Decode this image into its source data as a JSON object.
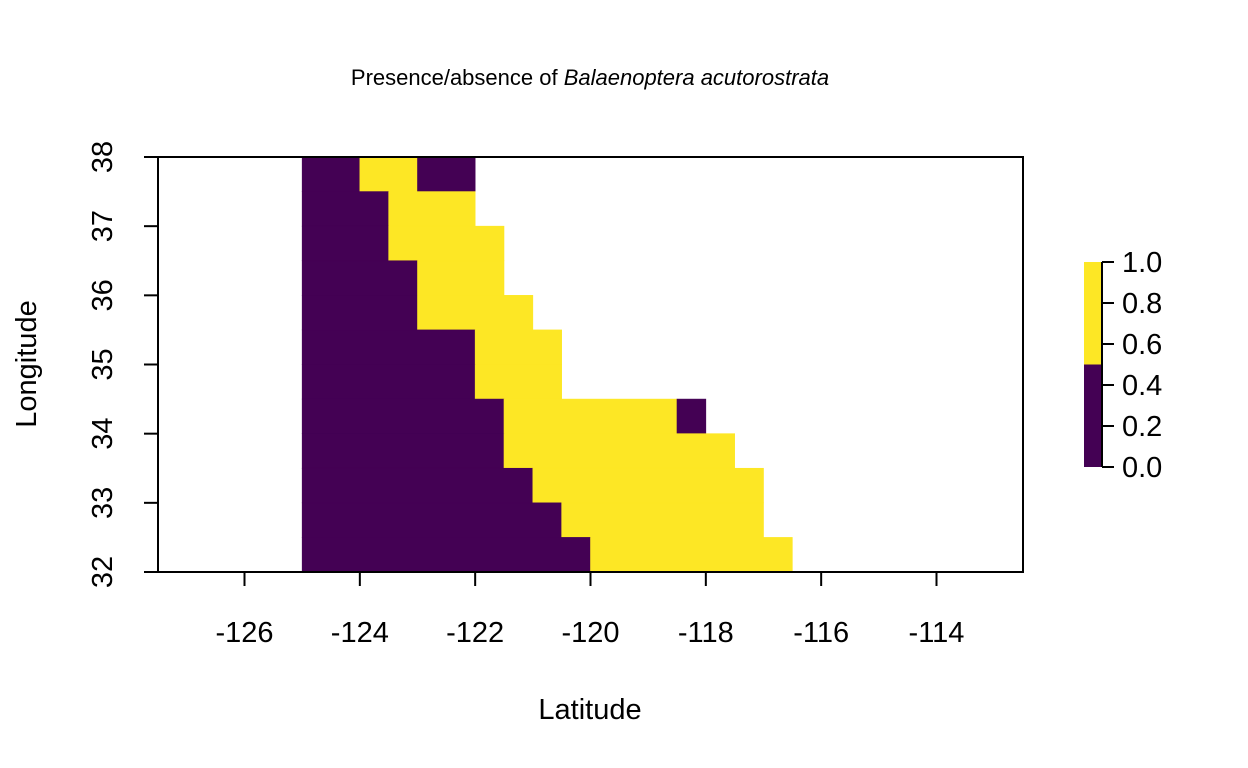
{
  "chart_data": {
    "type": "heatmap",
    "title": {
      "prefix": "Presence/absence of ",
      "species": "Balaenoptera acutorostrata"
    },
    "xlabel": "Latitude",
    "ylabel": "Longitude",
    "xlim": [
      -127.5,
      -112.5
    ],
    "ylim": [
      32,
      38
    ],
    "xticks": [
      -126,
      -124,
      -122,
      -120,
      -118,
      -116,
      -114
    ],
    "yticks": [
      32,
      33,
      34,
      35,
      36,
      37,
      38
    ],
    "cell_size": [
      0.5,
      0.5
    ],
    "legend": {
      "position": "right",
      "ticks": [
        "0.0",
        "0.2",
        "0.4",
        "0.6",
        "0.8",
        "1.0"
      ],
      "bands": [
        {
          "from": 0.0,
          "to": 0.5,
          "color": "#440154"
        },
        {
          "from": 0.5,
          "to": 1.0,
          "color": "#FDE725"
        }
      ]
    },
    "colors": {
      "absent": "#440154",
      "present": "#FDE725"
    },
    "rows": [
      {
        "y0": 37.5,
        "y1": 38.0,
        "cells": [
          {
            "x0": -125.0,
            "x1": -124.0,
            "value": 0
          },
          {
            "x0": -124.0,
            "x1": -123.0,
            "value": 1
          },
          {
            "x0": -123.0,
            "x1": -122.0,
            "value": 0
          }
        ]
      },
      {
        "y0": 37.0,
        "y1": 37.5,
        "cells": [
          {
            "x0": -125.0,
            "x1": -123.5,
            "value": 0
          },
          {
            "x0": -123.5,
            "x1": -122.0,
            "value": 1
          }
        ]
      },
      {
        "y0": 36.5,
        "y1": 37.0,
        "cells": [
          {
            "x0": -125.0,
            "x1": -123.5,
            "value": 0
          },
          {
            "x0": -123.5,
            "x1": -121.5,
            "value": 1
          }
        ]
      },
      {
        "y0": 36.0,
        "y1": 36.5,
        "cells": [
          {
            "x0": -125.0,
            "x1": -123.0,
            "value": 0
          },
          {
            "x0": -123.0,
            "x1": -121.5,
            "value": 1
          }
        ]
      },
      {
        "y0": 35.5,
        "y1": 36.0,
        "cells": [
          {
            "x0": -125.0,
            "x1": -123.0,
            "value": 0
          },
          {
            "x0": -123.0,
            "x1": -121.0,
            "value": 1
          }
        ]
      },
      {
        "y0": 35.0,
        "y1": 35.5,
        "cells": [
          {
            "x0": -125.0,
            "x1": -122.0,
            "value": 0
          },
          {
            "x0": -122.0,
            "x1": -120.5,
            "value": 1
          }
        ]
      },
      {
        "y0": 34.5,
        "y1": 35.0,
        "cells": [
          {
            "x0": -125.0,
            "x1": -122.0,
            "value": 0
          },
          {
            "x0": -122.0,
            "x1": -120.5,
            "value": 1
          }
        ]
      },
      {
        "y0": 34.0,
        "y1": 34.5,
        "cells": [
          {
            "x0": -125.0,
            "x1": -121.5,
            "value": 0
          },
          {
            "x0": -121.5,
            "x1": -118.5,
            "value": 1
          },
          {
            "x0": -118.5,
            "x1": -118.0,
            "value": 0
          }
        ]
      },
      {
        "y0": 33.5,
        "y1": 34.0,
        "cells": [
          {
            "x0": -125.0,
            "x1": -121.5,
            "value": 0
          },
          {
            "x0": -121.5,
            "x1": -117.5,
            "value": 1
          }
        ]
      },
      {
        "y0": 33.0,
        "y1": 33.5,
        "cells": [
          {
            "x0": -125.0,
            "x1": -121.0,
            "value": 0
          },
          {
            "x0": -121.0,
            "x1": -117.0,
            "value": 1
          }
        ]
      },
      {
        "y0": 32.5,
        "y1": 33.0,
        "cells": [
          {
            "x0": -125.0,
            "x1": -120.5,
            "value": 0
          },
          {
            "x0": -120.5,
            "x1": -117.0,
            "value": 1
          }
        ]
      },
      {
        "y0": 32.0,
        "y1": 32.5,
        "cells": [
          {
            "x0": -125.0,
            "x1": -120.0,
            "value": 0
          },
          {
            "x0": -120.0,
            "x1": -116.5,
            "value": 1
          }
        ]
      }
    ]
  }
}
